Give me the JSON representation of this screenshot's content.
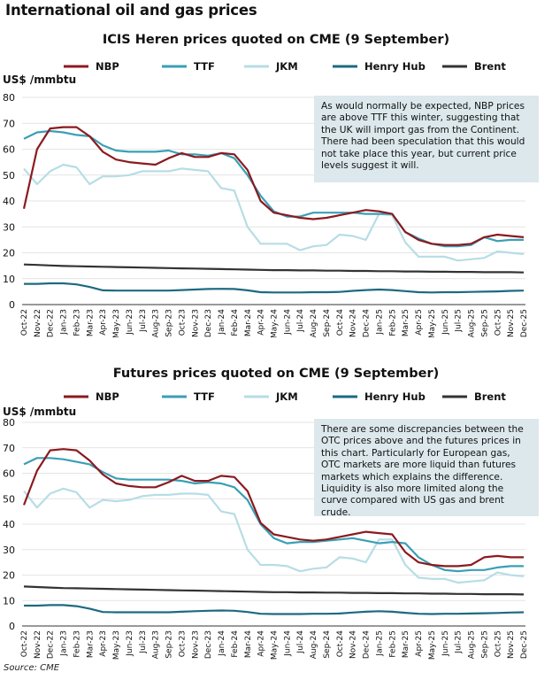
{
  "page_title": "International oil and gas prices",
  "source": "Source: CME",
  "colors": {
    "NBP": "#8b1a1f",
    "TTF": "#3a9fb5",
    "JKM": "#b7dde6",
    "Henry Hub": "#1d6a80",
    "Brent": "#333333"
  },
  "annotations": [
    "As would normally be expected, NBP prices are above TTF this winter, suggesting that the UK will import gas from the Continent. There had been speculation that this would not take place this year, but current price levels suggest it will.",
    "There are some discrepancies between the OTC prices above and the futures prices in this chart. Particularly for European gas, OTC markets are more liquid than futures markets which explains the difference. Liquidity is also more limited along the curve compared with US gas and brent crude."
  ],
  "chart_data": [
    {
      "type": "line",
      "title": "ICIS Heren prices quoted on CME (9 September)",
      "ylabel": "US$ /mmbtu",
      "ylim": [
        0,
        80
      ],
      "yticks": [
        0,
        10,
        20,
        30,
        40,
        50,
        60,
        70,
        80
      ],
      "grid": true,
      "legend": "top",
      "categories": [
        "Oct-22",
        "Nov-22",
        "Dec-22",
        "Jan-23",
        "Feb-23",
        "Mar-23",
        "Apr-23",
        "May-23",
        "Jun-23",
        "Jul-23",
        "Aug-23",
        "Sep-23",
        "Oct-23",
        "Nov-23",
        "Dec-23",
        "Jan-24",
        "Feb-24",
        "Mar-24",
        "Apr-24",
        "May-24",
        "Jun-24",
        "Jul-24",
        "Aug-24",
        "Sep-24",
        "Oct-24",
        "Nov-24",
        "Dec-24",
        "Jan-25",
        "Feb-25",
        "Mar-25",
        "Apr-25",
        "May-25",
        "Jun-25",
        "Jul-25",
        "Aug-25",
        "Sep-25",
        "Oct-25",
        "Nov-25",
        "Dec-25"
      ],
      "series": [
        {
          "name": "NBP",
          "values": [
            37,
            60,
            68,
            68.5,
            68.5,
            65,
            59,
            56,
            55,
            54.5,
            54,
            56.5,
            58.5,
            57,
            57,
            58.5,
            58,
            52,
            40,
            35.5,
            34.5,
            33.5,
            33,
            33.5,
            34.5,
            35.5,
            36.5,
            36,
            35,
            28,
            25,
            23.5,
            23,
            23,
            23.5,
            26,
            27,
            26.5,
            26
          ]
        },
        {
          "name": "TTF",
          "values": [
            64,
            66.5,
            67,
            66.5,
            65.5,
            65,
            61.5,
            59.5,
            59,
            59,
            59,
            59.5,
            58,
            58,
            57.5,
            58.5,
            56.5,
            50,
            42,
            36,
            34,
            34,
            35.5,
            35.5,
            35.5,
            35.5,
            35,
            35,
            35,
            28,
            25.5,
            23.5,
            22.5,
            22.5,
            23,
            26,
            24.5,
            25,
            25
          ]
        },
        {
          "name": "JKM",
          "values": [
            52.5,
            46.5,
            51.5,
            54,
            53,
            46.5,
            49.5,
            49.5,
            50,
            51.5,
            51.5,
            51.5,
            52.5,
            52,
            51.5,
            45,
            44,
            30,
            23.5,
            23.5,
            23.5,
            21,
            22.5,
            23,
            27,
            26.5,
            25,
            35,
            34.5,
            24,
            18.5,
            18.5,
            18.5,
            17,
            17.5,
            18,
            20.5,
            20,
            19.5
          ]
        },
        {
          "name": "Henry Hub",
          "values": [
            8,
            8,
            8.2,
            8.2,
            7.8,
            6.8,
            5.5,
            5.4,
            5.4,
            5.4,
            5.4,
            5.4,
            5.6,
            5.8,
            6,
            6.1,
            6,
            5.5,
            4.8,
            4.7,
            4.7,
            4.7,
            4.8,
            4.8,
            4.9,
            5.3,
            5.6,
            5.8,
            5.6,
            5.2,
            4.8,
            4.7,
            4.8,
            4.8,
            4.9,
            5,
            5.1,
            5.3,
            5.4
          ]
        },
        {
          "name": "Brent",
          "values": [
            15.5,
            15.3,
            15.1,
            14.9,
            14.8,
            14.7,
            14.6,
            14.5,
            14.4,
            14.3,
            14.2,
            14.1,
            14,
            13.9,
            13.8,
            13.7,
            13.6,
            13.5,
            13.4,
            13.3,
            13.3,
            13.2,
            13.2,
            13.1,
            13.1,
            13,
            13,
            12.9,
            12.9,
            12.8,
            12.8,
            12.7,
            12.7,
            12.6,
            12.6,
            12.5,
            12.5,
            12.5,
            12.4
          ]
        }
      ]
    },
    {
      "type": "line",
      "title": "Futures prices quoted on CME (9 September)",
      "ylabel": "US$ /mmbtu",
      "ylim": [
        0,
        80
      ],
      "yticks": [
        0,
        10,
        20,
        30,
        40,
        50,
        60,
        70,
        80
      ],
      "grid": true,
      "legend": "top",
      "categories": [
        "Oct-22",
        "Nov-22",
        "Dec-22",
        "Jan-23",
        "Feb-23",
        "Mar-23",
        "Apr-23",
        "May-23",
        "Jun-23",
        "Jul-23",
        "Aug-23",
        "Sep-23",
        "Oct-23",
        "Nov-23",
        "Dec-23",
        "Jan-24",
        "Feb-24",
        "Mar-24",
        "Apr-24",
        "May-24",
        "Jun-24",
        "Jul-24",
        "Aug-24",
        "Sep-24",
        "Oct-24",
        "Nov-24",
        "Dec-24",
        "Jan-25",
        "Feb-25",
        "Mar-25",
        "Apr-25",
        "May-25",
        "Jun-25",
        "Jul-25",
        "Aug-25",
        "Sep-25",
        "Oct-25",
        "Nov-25",
        "Dec-25"
      ],
      "series": [
        {
          "name": "NBP",
          "values": [
            47.5,
            61,
            69,
            69.5,
            69,
            65,
            59.5,
            56,
            55,
            54.5,
            54.5,
            56.5,
            59,
            57,
            57,
            59,
            58.5,
            53,
            40.5,
            36,
            35,
            34,
            33.5,
            34,
            35,
            36,
            37,
            36.5,
            36,
            29,
            25,
            24,
            23.5,
            23.5,
            24,
            27,
            27.5,
            27,
            27
          ]
        },
        {
          "name": "TTF",
          "values": [
            63.5,
            66,
            66,
            65.5,
            64.5,
            63.5,
            60.5,
            58,
            57.5,
            57.5,
            57.5,
            57.5,
            57,
            56,
            56.5,
            56,
            54.5,
            49.5,
            40,
            34.5,
            32.5,
            33,
            33,
            33.5,
            34,
            34.5,
            33.5,
            32.5,
            33,
            32.5,
            27,
            24,
            22,
            21.5,
            22,
            22,
            23,
            23.5,
            23.5
          ]
        },
        {
          "name": "JKM",
          "values": [
            53,
            46.5,
            52,
            54,
            52.5,
            46.5,
            49.5,
            49,
            49.5,
            51,
            51.5,
            51.5,
            52,
            52,
            51.5,
            45,
            44,
            30,
            24,
            24,
            23.5,
            21.5,
            22.5,
            23,
            27,
            26.5,
            25,
            34,
            34,
            24,
            19,
            18.5,
            18.5,
            17,
            17.5,
            18,
            21,
            20,
            19.5
          ]
        },
        {
          "name": "Henry Hub",
          "values": [
            8,
            8,
            8.2,
            8.2,
            7.8,
            6.8,
            5.5,
            5.4,
            5.4,
            5.4,
            5.4,
            5.4,
            5.6,
            5.8,
            6,
            6.1,
            6,
            5.5,
            4.8,
            4.7,
            4.7,
            4.7,
            4.8,
            4.8,
            4.9,
            5.3,
            5.6,
            5.8,
            5.6,
            5.2,
            4.8,
            4.7,
            4.8,
            4.8,
            4.9,
            5,
            5.1,
            5.3,
            5.4
          ]
        },
        {
          "name": "Brent",
          "values": [
            15.5,
            15.3,
            15.1,
            14.9,
            14.8,
            14.7,
            14.6,
            14.5,
            14.4,
            14.3,
            14.2,
            14.1,
            14,
            13.9,
            13.8,
            13.7,
            13.6,
            13.5,
            13.4,
            13.3,
            13.3,
            13.2,
            13.2,
            13.1,
            13.1,
            13,
            13,
            12.9,
            12.9,
            12.8,
            12.8,
            12.7,
            12.7,
            12.6,
            12.6,
            12.5,
            12.5,
            12.5,
            12.4
          ]
        }
      ]
    }
  ]
}
